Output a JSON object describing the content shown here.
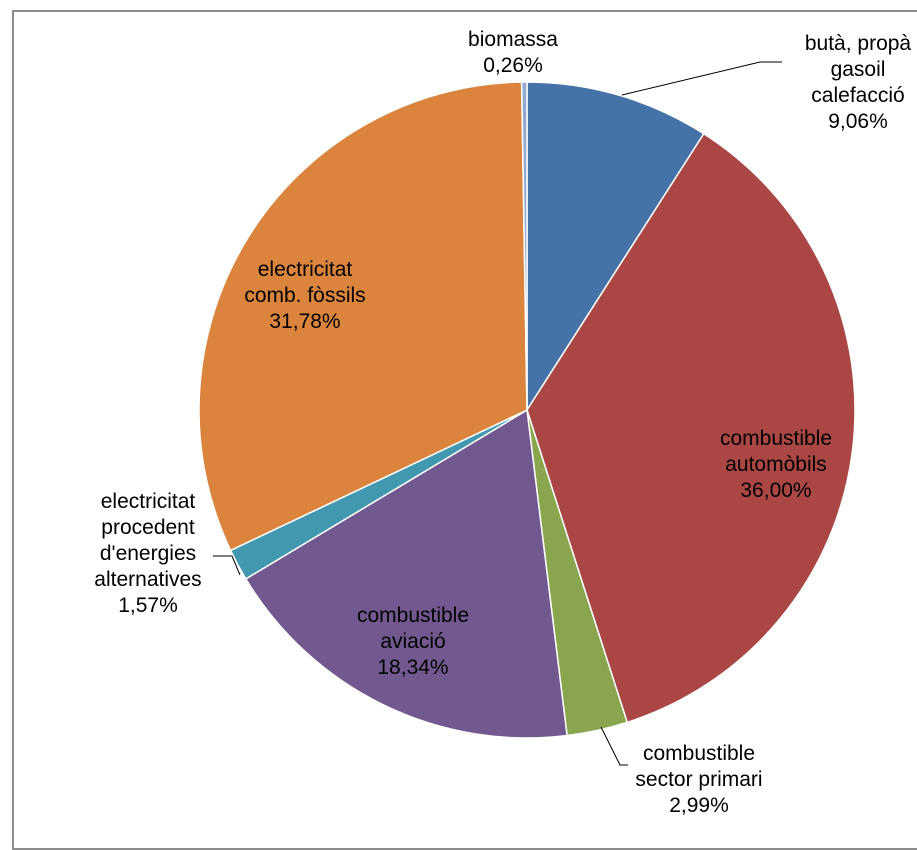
{
  "chart_data": {
    "type": "pie",
    "title": "",
    "slices": [
      {
        "name": "butà, propà, gasoil calefacció",
        "label_lines": [
          "butà, propà",
          "gasoil",
          "calefacció",
          "9,06%"
        ],
        "value": 9.06,
        "color": "#4572a7"
      },
      {
        "name": "combustible automòbils",
        "label_lines": [
          "combustible",
          "automòbils",
          "36,00%"
        ],
        "value": 36.0,
        "color": "#aa4643"
      },
      {
        "name": "combustible sector primari",
        "label_lines": [
          "combustible",
          "sector primari",
          "2,99%"
        ],
        "value": 2.99,
        "color": "#89a54e"
      },
      {
        "name": "combustible aviació",
        "label_lines": [
          "combustible",
          "aviació",
          "18,34%"
        ],
        "value": 18.34,
        "color": "#71588f"
      },
      {
        "name": "electricitat procedent d'energies alternatives",
        "label_lines": [
          "electricitat",
          "procedent",
          "d'energies",
          "alternatives",
          "1,57%"
        ],
        "value": 1.57,
        "color": "#4198af"
      },
      {
        "name": "electricitat comb. fòssils",
        "label_lines": [
          "electricitat",
          "comb. fòssils",
          "31,78%"
        ],
        "value": 31.78,
        "color": "#db843d"
      },
      {
        "name": "biomassa",
        "label_lines": [
          "biomassa",
          "0,26%"
        ],
        "value": 0.26,
        "color": "#93a9cf"
      }
    ]
  }
}
